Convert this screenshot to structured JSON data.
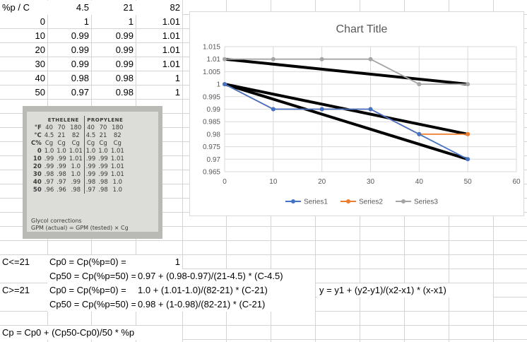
{
  "table": {
    "header": [
      "%p / C",
      "4.5",
      "21",
      "82"
    ],
    "rows": [
      [
        "0",
        "1",
        "1",
        "1.01"
      ],
      [
        "10",
        "0.99",
        "0.99",
        "1.01"
      ],
      [
        "20",
        "0.99",
        "0.99",
        "1.01"
      ],
      [
        "30",
        "0.99",
        "0.99",
        "1.01"
      ],
      [
        "40",
        "0.98",
        "0.98",
        "1"
      ],
      [
        "50",
        "0.97",
        "0.98",
        "1"
      ]
    ]
  },
  "photo": {
    "col_headers": [
      "ETHELENE",
      "PROPYLENE"
    ],
    "rows": [
      [
        "°F",
        "40",
        "70",
        "180",
        "40",
        "70",
        "180"
      ],
      [
        "°C",
        "4.5",
        "21",
        "82",
        "4.5",
        "21",
        "82"
      ],
      [
        "C%",
        "Cg",
        "Cg",
        "Cg",
        "Cg",
        "Cg",
        "Cg"
      ],
      [
        "0",
        "1.0",
        "1.0",
        "1.01",
        "1.0",
        "1.0",
        "1.01"
      ],
      [
        "10",
        ".99",
        ".99",
        "1.01",
        ".99",
        ".99",
        "1.01"
      ],
      [
        "20",
        ".99",
        ".99",
        "1.0",
        ".99",
        ".99",
        "1.01"
      ],
      [
        "30",
        ".98",
        ".98",
        "1.0",
        ".99",
        ".99",
        "1.01"
      ],
      [
        "40",
        ".97",
        ".97",
        ".99",
        ".98",
        ".98",
        "1.0"
      ],
      [
        "50",
        ".96",
        ".96",
        ".98",
        ".97",
        ".98",
        "1.0"
      ]
    ],
    "footer_line1": "Glycol corrections",
    "footer_line2": "GPM (actual) = GPM (tested) × Cg"
  },
  "formulas": {
    "c_le21": "C<=21",
    "cp0_label_1": "Cp0 = Cp(%p=0) =",
    "cp0_value_1": "1",
    "cp50_label_1": "Cp50 = Cp(%p=50) =",
    "cp50_value_1": "0.97 + (0.98-0.97)/(21-4.5) * (C-4.5)",
    "c_ge21": "C>=21",
    "cp0_label_2": "Cp0 = Cp(%p=0) =",
    "cp0_value_2": "1.0 + (1.01-1.0)/(82-21) * (C-21)",
    "interp": "y = y1 + (y2-y1)/(x2-x1) * (x-x1)",
    "cp50_label_2": "Cp50 = Cp(%p=50) =",
    "cp50_value_2": "0.98 + (1-0.98)/(82-21) * (C-21)",
    "cp_final": "Cp = Cp0 + (Cp50-Cp0)/50 * %p"
  },
  "colors": {
    "series1": "#4472c4",
    "series2": "#ed7d31",
    "series3": "#a5a5a5",
    "trendline": "#000000",
    "gridline": "#d9d9d9"
  },
  "chart_data": {
    "type": "line",
    "title": "Chart Title",
    "x": [
      0,
      10,
      20,
      30,
      40,
      50
    ],
    "xlim": [
      0,
      60
    ],
    "ylim": [
      0.965,
      1.015
    ],
    "x_ticks": [
      "0",
      "10",
      "20",
      "30",
      "40",
      "50",
      "60"
    ],
    "y_ticks": [
      "0.965",
      "0.97",
      "0.975",
      "0.98",
      "0.985",
      "0.99",
      "0.995",
      "1",
      "1.005",
      "1.01",
      "1.015"
    ],
    "grid": true,
    "legend": "bottom",
    "series": [
      {
        "name": "Series1",
        "values": [
          1,
          0.99,
          0.99,
          0.99,
          0.98,
          0.97
        ]
      },
      {
        "name": "Series2",
        "values": [
          1,
          0.99,
          0.99,
          0.99,
          0.98,
          0.98
        ]
      },
      {
        "name": "Series3",
        "values": [
          1.01,
          1.01,
          1.01,
          1.01,
          1,
          1
        ]
      }
    ],
    "trendlines": [
      {
        "x": [
          0,
          50
        ],
        "y": [
          1,
          0.97
        ]
      },
      {
        "x": [
          0,
          50
        ],
        "y": [
          1,
          0.98
        ]
      },
      {
        "x": [
          0,
          50
        ],
        "y": [
          1.01,
          1
        ]
      }
    ]
  }
}
